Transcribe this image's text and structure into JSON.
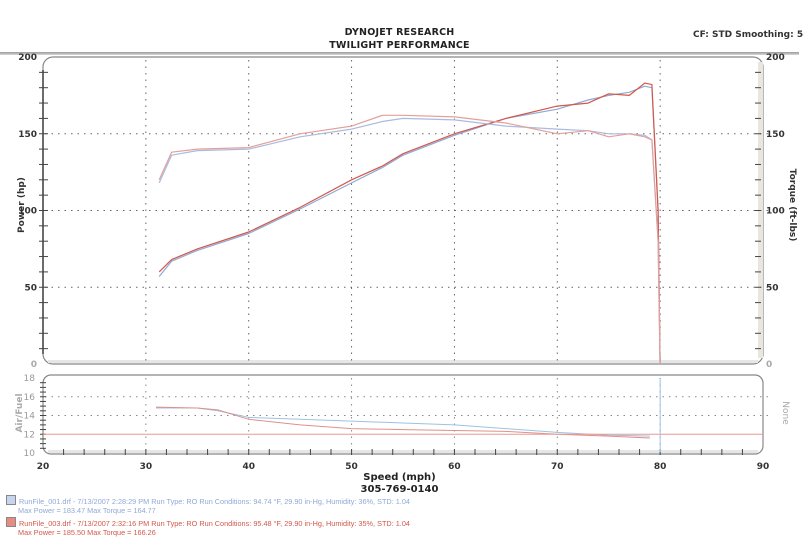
{
  "header": {
    "title_line1": "DYNOJET RESEARCH",
    "title_line2": "TWILIGHT PERFORMANCE",
    "cf_smoothing": "CF: STD  Smoothing: 5"
  },
  "axes": {
    "left_label": "Power (hp)",
    "right_label": "Torque (ft-lbs)",
    "afr_label": "Air/Fuel",
    "afr_right_label": "None",
    "x_label": "Speed (mph)",
    "phone": "305-769-0140",
    "left_ticks": [
      "200",
      "150",
      "100",
      "50",
      "0"
    ],
    "right_ticks": [
      "200",
      "150",
      "100",
      "50",
      "0"
    ],
    "afr_ticks": [
      "18",
      "16",
      "14",
      "12",
      "10"
    ],
    "x_ticks": [
      "20",
      "30",
      "40",
      "50",
      "60",
      "70",
      "80",
      "90"
    ]
  },
  "legend": [
    {
      "color": "#8fa9d6",
      "line1": "RunFile_001.drf - 7/13/2007 2:28:29 PM  Run Type: RO  Run Conditions: 94.74 °F, 29.90 in-Hg,  Humidity:  36%, STD: 1.04",
      "line2": "Max Power = 183.47  Max Torque = 164.77"
    },
    {
      "color": "#d2584a",
      "line1": "RunFile_003.drf - 7/13/2007 2:32:16 PM  Run Type: RO  Run Conditions: 95.48 °F, 29.90 in-Hg,  Humidity:  35%, STD: 1.04",
      "line2": "Max Power = 185.50  Max Torque = 166.26"
    }
  ],
  "chart_data": [
    {
      "type": "line",
      "title": "DYNOJET RESEARCH - TWILIGHT PERFORMANCE",
      "xlabel": "Speed (mph)",
      "ylabel": "Power (hp)",
      "y2label": "Torque (ft-lbs)",
      "xlim": [
        20,
        90
      ],
      "ylim": [
        0,
        200
      ],
      "y2lim": [
        0,
        200
      ],
      "grid": true,
      "x": [
        31.3,
        32.5,
        35,
        40,
        45,
        50,
        53,
        55,
        60,
        65,
        70,
        73,
        75,
        77,
        78.5,
        79.2,
        79.8,
        80.0
      ],
      "series": [
        {
          "name": "RunFile_001 Power",
          "color": "#8fa9d6",
          "axis": "left",
          "values": [
            57,
            67,
            74,
            85,
            101,
            118,
            128,
            136,
            149,
            160,
            166,
            172,
            175,
            177,
            181,
            180,
            100,
            0
          ]
        },
        {
          "name": "RunFile_003 Power",
          "color": "#d2584a",
          "axis": "left",
          "values": [
            60,
            68,
            75,
            86,
            102,
            120,
            129,
            137,
            150,
            160,
            168,
            170,
            176,
            175,
            183,
            182,
            100,
            0
          ]
        },
        {
          "name": "RunFile_001 Torque",
          "color": "#aabbe0",
          "axis": "right",
          "values": [
            118,
            136,
            139,
            140,
            148,
            153,
            158,
            160,
            159,
            155,
            153,
            152,
            150,
            150,
            149,
            146,
            80,
            0
          ]
        },
        {
          "name": "RunFile_003 Torque",
          "color": "#e3a09a",
          "axis": "right",
          "values": [
            120,
            138,
            140,
            141,
            150,
            155,
            162,
            162,
            161,
            157,
            150,
            152,
            148,
            150,
            148,
            146,
            80,
            0
          ]
        }
      ]
    },
    {
      "type": "line",
      "ylabel": "Air/Fuel",
      "xlabel": "Speed (mph)",
      "xlim": [
        20,
        90
      ],
      "ylim": [
        10,
        18
      ],
      "grid": true,
      "x": [
        31,
        35,
        37,
        40,
        45,
        50,
        55,
        60,
        65,
        70,
        75,
        79
      ],
      "series": [
        {
          "name": "RunFile_001 AFR",
          "color": "#9cc3e0",
          "values": [
            14.8,
            14.8,
            14.5,
            13.8,
            13.6,
            13.4,
            13.2,
            13.0,
            12.6,
            12.2,
            11.9,
            11.8
          ]
        },
        {
          "name": "RunFile_003 AFR",
          "color": "#e0908a",
          "values": [
            14.9,
            14.8,
            14.6,
            13.6,
            13.0,
            12.6,
            12.5,
            12.4,
            12.3,
            12.0,
            11.8,
            11.6
          ]
        },
        {
          "name": "Reference 12.0",
          "color": "#e89a92",
          "values": [
            12.0,
            12.0,
            12.0,
            12.0,
            12.0,
            12.0,
            12.0,
            12.0,
            12.0,
            12.0,
            12.0,
            12.0
          ]
        }
      ]
    }
  ]
}
